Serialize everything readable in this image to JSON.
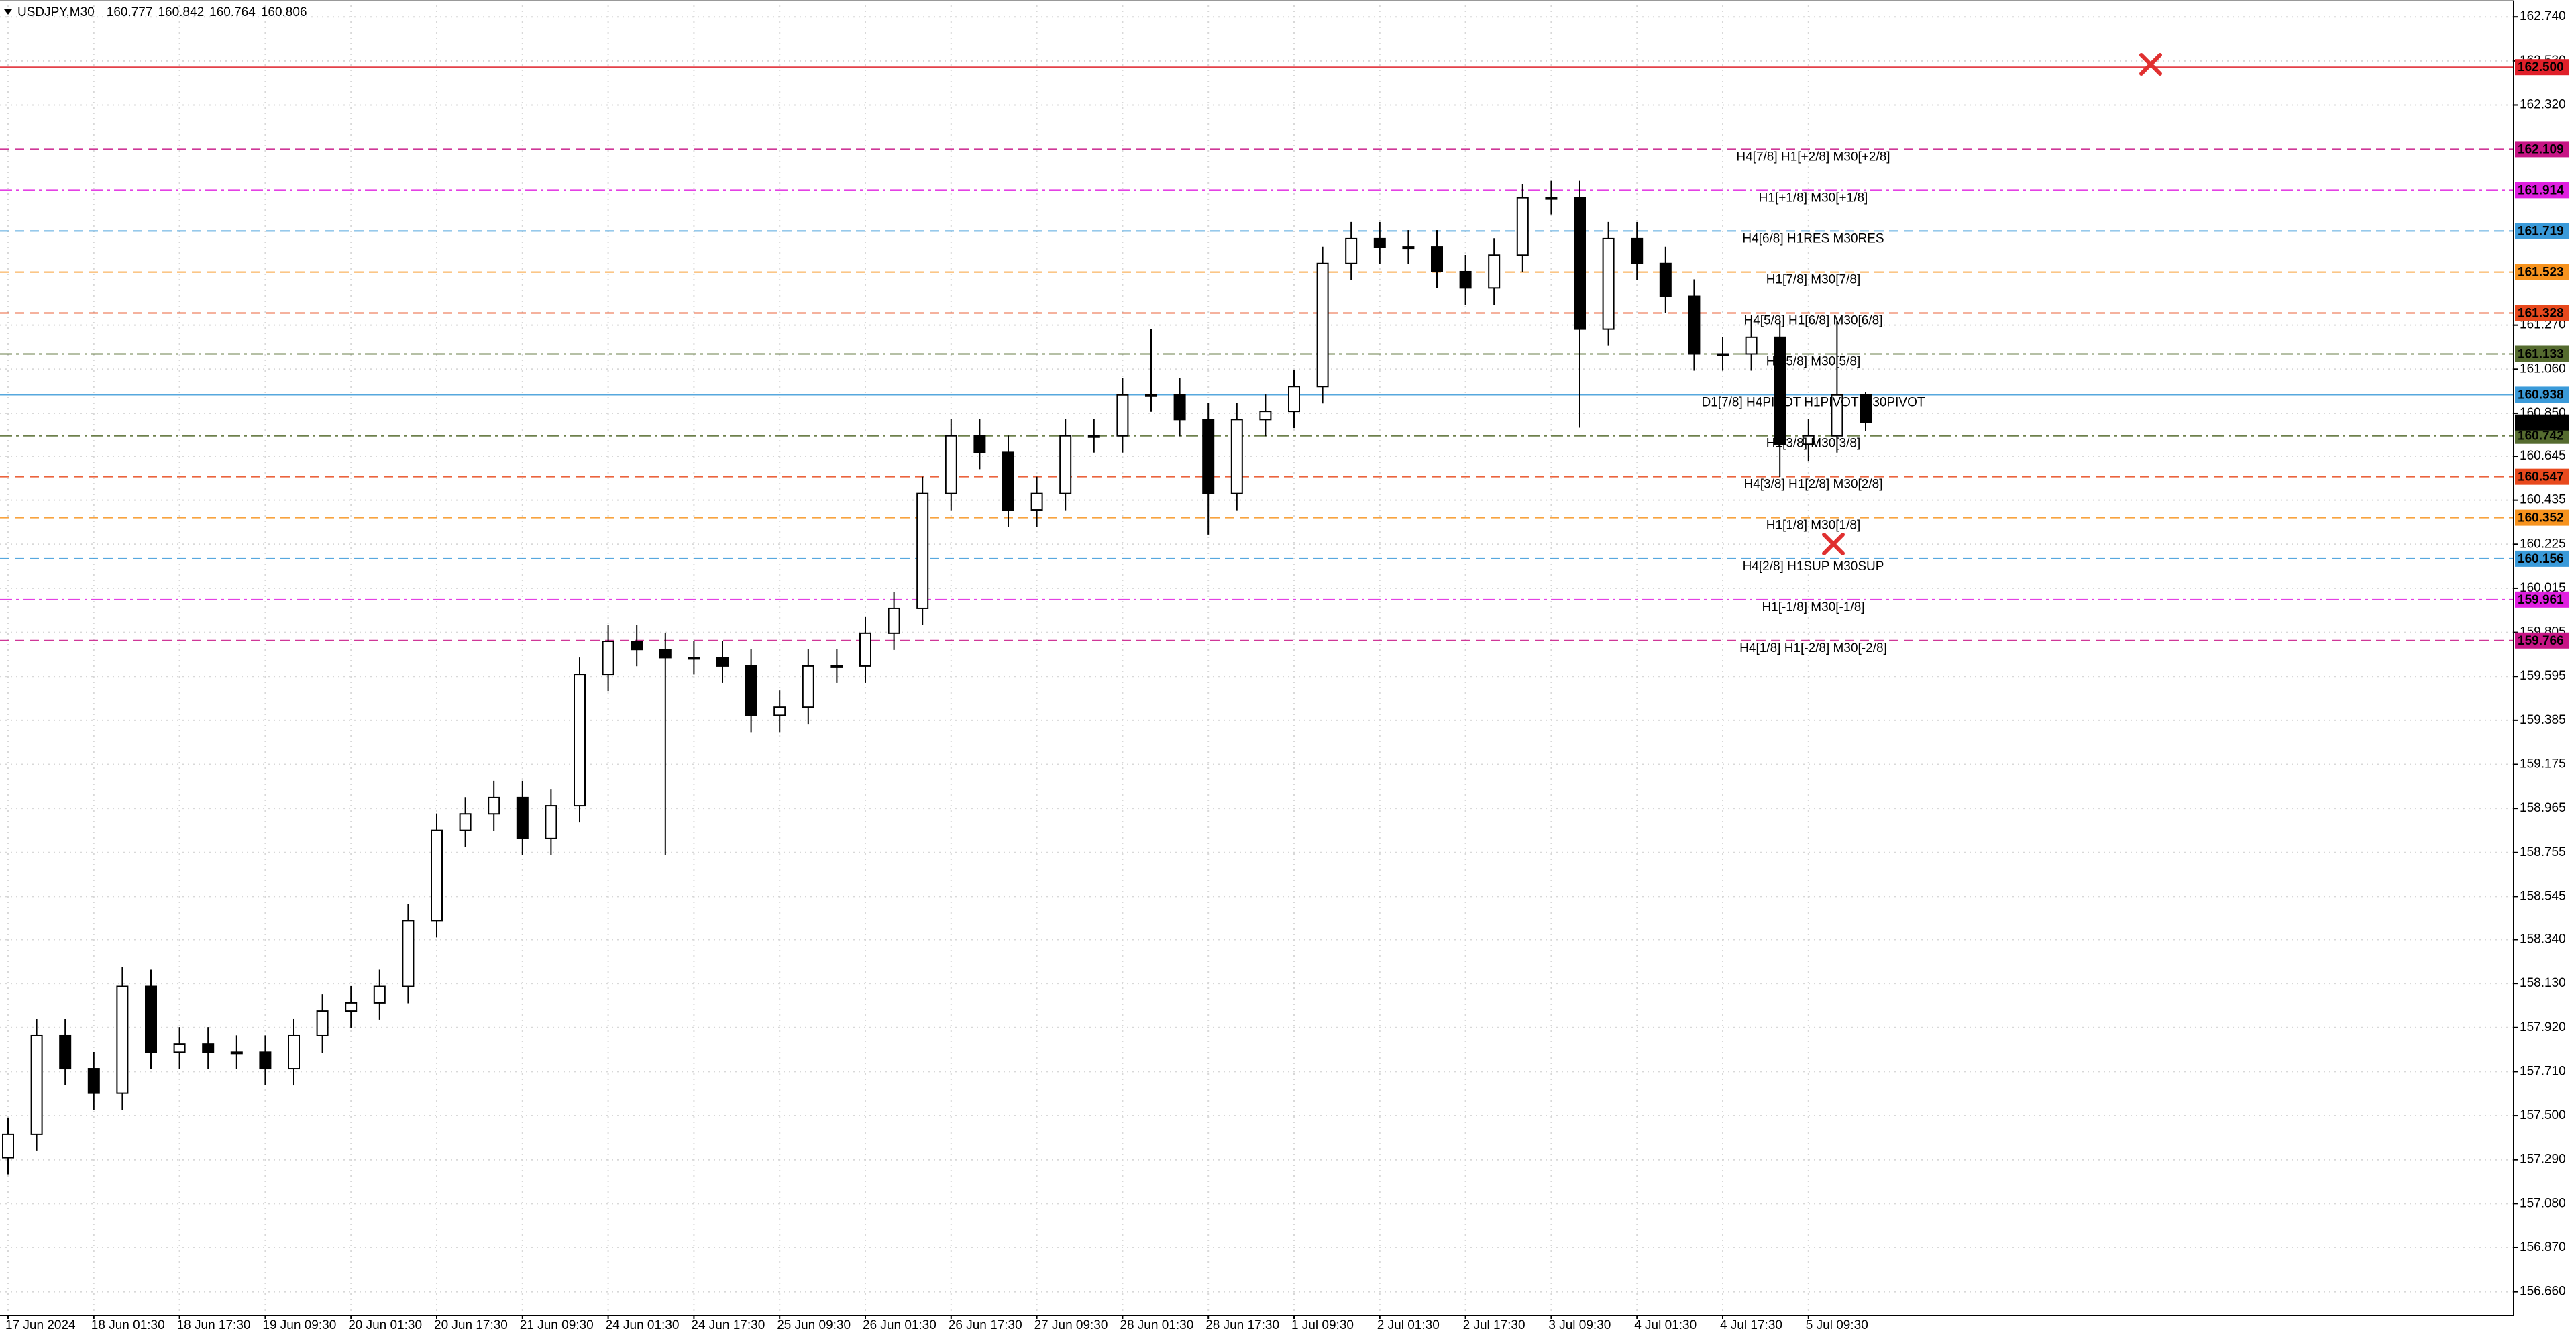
{
  "chart_data": {
    "type": "candlestick",
    "title": "USDJPY,M30",
    "title_values": [
      160.777,
      160.842,
      160.764,
      160.806
    ],
    "grid": true,
    "ylim": [
      156.55,
      162.795
    ],
    "yticks": [
      {
        "value": 162.74,
        "label": "162.740"
      },
      {
        "value": 162.53,
        "label": "162.530"
      },
      {
        "value": 162.32,
        "label": "162.320"
      },
      {
        "value": 161.27,
        "label": "161.270"
      },
      {
        "value": 161.06,
        "label": "161.060"
      },
      {
        "value": 160.85,
        "label": "160.850"
      },
      160.645,
      160.435,
      160.225,
      160.015,
      159.805,
      159.595,
      159.385,
      159.175,
      158.965,
      158.755,
      158.545,
      {
        "value": 158.34,
        "label": "158.340"
      },
      {
        "value": 158.13,
        "label": "158.130"
      },
      {
        "value": 157.92,
        "label": "157.920"
      },
      {
        "value": 157.71,
        "label": "157.710"
      },
      {
        "value": 157.5,
        "label": "157.500"
      },
      {
        "value": 157.29,
        "label": "157.290"
      },
      {
        "value": 157.08,
        "label": "157.080"
      },
      {
        "value": 156.87,
        "label": "156.870"
      },
      {
        "value": 156.66,
        "label": "156.660"
      }
    ],
    "categories": [
      "17 Jun 2024",
      null,
      null,
      "18 Jun 01:30",
      null,
      null,
      "18 Jun 17:30",
      null,
      null,
      "19 Jun 09:30",
      null,
      null,
      "20 Jun 01:30",
      null,
      null,
      "20 Jun 17:30",
      null,
      null,
      "21 Jun 09:30",
      null,
      null,
      "24 Jun 01:30",
      null,
      null,
      "24 Jun 17:30",
      null,
      null,
      "25 Jun 09:30",
      null,
      null,
      "26 Jun 01:30",
      null,
      null,
      "26 Jun 17:30",
      null,
      null,
      "27 Jun 09:30",
      null,
      null,
      "28 Jun 01:30",
      null,
      null,
      "28 Jun 17:30",
      null,
      null,
      "1 Jul 09:30",
      null,
      null,
      "2 Jul 01:30",
      null,
      null,
      "2 Jul 17:30",
      null,
      null,
      "3 Jul 09:30",
      null,
      null,
      "4 Jul 01:30",
      null,
      null,
      "4 Jul 17:30",
      null,
      null,
      "5 Jul 09:30",
      null,
      null
    ],
    "open": [
      157.3,
      157.411,
      157.881,
      157.724,
      157.607,
      158.116,
      157.803,
      157.842,
      157.803,
      157.803,
      157.724,
      157.881,
      157.999,
      158.038,
      158.116,
      158.43,
      158.861,
      158.939,
      159.017,
      158.822,
      158.978,
      159.605,
      159.762,
      159.723,
      159.684,
      159.684,
      159.644,
      159.409,
      159.448,
      159.644,
      159.644,
      159.801,
      159.919,
      160.467,
      160.742,
      160.663,
      160.389,
      160.467,
      160.742,
      160.742,
      160.937,
      160.937,
      160.82,
      160.467,
      160.82,
      160.859,
      160.977,
      161.564,
      161.682,
      161.643,
      161.643,
      161.525,
      161.447,
      161.604,
      161.878,
      161.878,
      161.251,
      161.682,
      161.564,
      161.408,
      161.133,
      161.133,
      161.212,
      160.702,
      160.742,
      160.937
    ],
    "high": [
      157.491,
      157.961,
      157.961,
      157.804,
      158.21,
      158.196,
      157.922,
      157.922,
      157.883,
      157.883,
      157.961,
      158.079,
      158.118,
      158.196,
      158.51,
      158.941,
      159.019,
      159.097,
      159.097,
      159.058,
      159.685,
      159.842,
      159.842,
      159.803,
      159.764,
      159.764,
      159.724,
      159.528,
      159.724,
      159.724,
      159.881,
      159.999,
      160.547,
      160.822,
      160.822,
      160.743,
      160.547,
      160.822,
      160.822,
      161.017,
      161.251,
      161.017,
      160.9,
      160.9,
      160.939,
      161.057,
      161.644,
      161.762,
      161.762,
      161.723,
      161.723,
      161.605,
      161.684,
      161.941,
      161.958,
      161.958,
      161.762,
      161.762,
      161.644,
      161.488,
      161.213,
      161.292,
      161.292,
      160.822,
      161.29,
      160.95
    ],
    "low": [
      157.22,
      157.331,
      157.644,
      157.527,
      157.527,
      157.723,
      157.723,
      157.723,
      157.723,
      157.644,
      157.644,
      157.801,
      157.919,
      157.958,
      158.036,
      158.35,
      158.781,
      158.859,
      158.742,
      158.742,
      158.898,
      159.525,
      159.643,
      158.743,
      159.604,
      159.564,
      159.329,
      159.329,
      159.368,
      159.564,
      159.564,
      159.721,
      159.839,
      160.387,
      160.583,
      160.309,
      160.309,
      160.387,
      160.662,
      160.662,
      160.857,
      160.74,
      160.271,
      160.387,
      160.74,
      160.779,
      160.897,
      161.484,
      161.563,
      161.563,
      161.445,
      161.367,
      161.367,
      161.524,
      161.798,
      160.781,
      161.171,
      161.484,
      161.328,
      161.053,
      161.053,
      161.053,
      160.546,
      160.622,
      160.662,
      160.764
    ],
    "close": [
      157.411,
      157.881,
      157.724,
      157.607,
      158.116,
      157.803,
      157.842,
      157.803,
      157.803,
      157.724,
      157.881,
      157.999,
      158.038,
      158.116,
      158.43,
      158.861,
      158.939,
      159.017,
      158.822,
      158.978,
      159.605,
      159.762,
      159.723,
      159.684,
      159.684,
      159.644,
      159.409,
      159.448,
      159.644,
      159.644,
      159.801,
      159.919,
      160.467,
      160.742,
      160.663,
      160.389,
      160.467,
      160.742,
      160.742,
      160.937,
      160.937,
      160.82,
      160.467,
      160.82,
      160.859,
      160.977,
      161.564,
      161.682,
      161.643,
      161.643,
      161.525,
      161.447,
      161.604,
      161.878,
      161.878,
      161.251,
      161.682,
      161.564,
      161.408,
      161.133,
      161.133,
      161.212,
      160.702,
      160.742,
      160.937,
      160.806
    ],
    "levels": [
      {
        "price": 162.5,
        "price_label": "162.500",
        "color": "#e0202a",
        "style": "solid"
      },
      {
        "price": 162.109,
        "label": "H4[7/8] H1[+2/8] M30[+2/8]",
        "color": "#c71585",
        "style": "dash"
      },
      {
        "price": 161.914,
        "label": "H1[+1/8] M30[+1/8]",
        "color": "#e020e0",
        "style": "dashdot"
      },
      {
        "price": 161.719,
        "label": "H4[6/8] H1RES M30RES",
        "color": "#3a9ad9",
        "style": "dash"
      },
      {
        "price": 161.523,
        "label": "H1[7/8] M30[7/8]",
        "color": "#f7931e",
        "style": "dash"
      },
      {
        "price": 161.328,
        "label": "H4[5/8] H1[6/8] M30[6/8]",
        "color": "#e8491d",
        "style": "dash"
      },
      {
        "price": 161.133,
        "label": "H1[5/8] M30[5/8]",
        "color": "#556b2f",
        "style": "dashdot"
      },
      {
        "price": 160.938,
        "label": "D1[7/8] H4PIVOT H1PIVOT M30PIVOT",
        "color": "#3a9ad9",
        "style": "solid"
      },
      {
        "price": 160.742,
        "label": "H1[3/8] M30[3/8]",
        "color": "#556b2f",
        "style": "dashdot"
      },
      {
        "price": 160.547,
        "label": "H4[3/8] H1[2/8] M30[2/8]",
        "color": "#e8491d",
        "style": "dash"
      },
      {
        "price": 160.352,
        "label": "H1[1/8] M30[1/8]",
        "color": "#f7931e",
        "style": "dash"
      },
      {
        "price": 160.156,
        "label": "H4[2/8] H1SUP M30SUP",
        "color": "#3a9ad9",
        "style": "dash"
      },
      {
        "price": 159.961,
        "label": "H1[-1/8] M30[-1/8]",
        "color": "#e020e0",
        "style": "dashdot"
      },
      {
        "price": 159.766,
        "label": "H4[1/8] H1[-2/8] M30[-2/8]",
        "color": "#c71585",
        "style": "dash"
      }
    ],
    "current": {
      "value": 160.806,
      "color": "#000000"
    }
  }
}
